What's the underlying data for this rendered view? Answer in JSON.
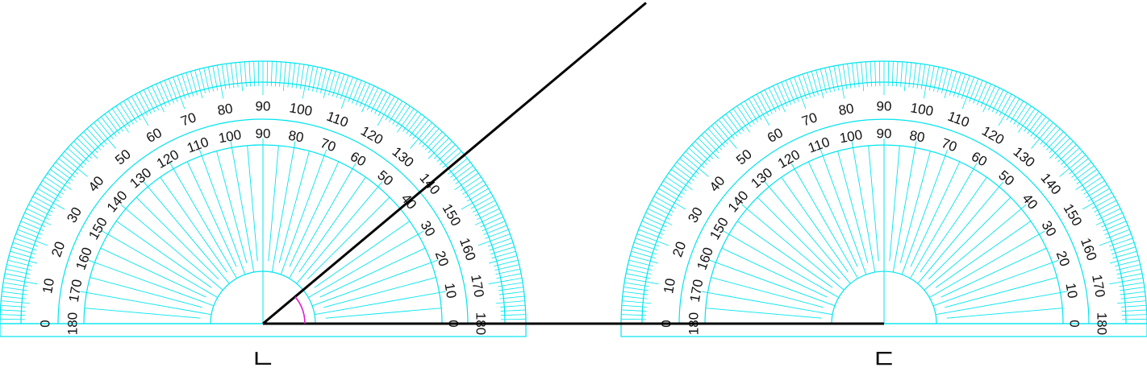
{
  "colors": {
    "protractor": "#00e5ee",
    "ray": "#000000",
    "angle_arc": "#e020c8",
    "text": "#111111"
  },
  "protractors": [
    {
      "id": "left",
      "caption": "ㄴ",
      "outer_scale": [
        0,
        10,
        20,
        30,
        40,
        50,
        60,
        70,
        80,
        90,
        100,
        110,
        120,
        130,
        140,
        150,
        160,
        170,
        180
      ],
      "inner_scale": [
        180,
        170,
        160,
        150,
        140,
        130,
        120,
        110,
        100,
        90,
        80,
        70,
        60,
        50,
        40,
        30,
        20,
        10,
        0
      ]
    },
    {
      "id": "right",
      "caption": "ㄷ",
      "outer_scale": [
        0,
        10,
        20,
        30,
        40,
        50,
        60,
        70,
        80,
        90,
        100,
        110,
        120,
        130,
        140,
        150,
        160,
        170,
        180
      ],
      "inner_scale": [
        180,
        170,
        160,
        150,
        140,
        130,
        120,
        110,
        100,
        90,
        80,
        70,
        60,
        50,
        40,
        30,
        20,
        10,
        0
      ]
    }
  ],
  "angle": {
    "ray_direction_deg": 40,
    "marked": true
  }
}
